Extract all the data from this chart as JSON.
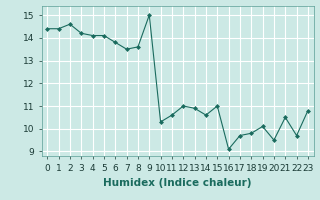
{
  "x": [
    0,
    1,
    2,
    3,
    4,
    5,
    6,
    7,
    8,
    9,
    10,
    11,
    12,
    13,
    14,
    15,
    16,
    17,
    18,
    19,
    20,
    21,
    22,
    23
  ],
  "y": [
    14.4,
    14.4,
    14.6,
    14.2,
    14.1,
    14.1,
    13.8,
    13.5,
    13.6,
    15.0,
    10.3,
    10.6,
    11.0,
    10.9,
    10.6,
    11.0,
    9.1,
    9.7,
    9.8,
    10.1,
    9.5,
    10.5,
    9.7,
    10.8
  ],
  "line_color": "#1a6b5e",
  "marker": "D",
  "marker_size": 2,
  "bg_color": "#cce9e5",
  "grid_color": "#ffffff",
  "xlabel": "Humidex (Indice chaleur)",
  "xlabel_fontsize": 7.5,
  "tick_fontsize": 6.5,
  "xlim": [
    -0.5,
    23.5
  ],
  "ylim": [
    8.8,
    15.4
  ],
  "yticks": [
    9,
    10,
    11,
    12,
    13,
    14,
    15
  ],
  "xticks": [
    0,
    1,
    2,
    3,
    4,
    5,
    6,
    7,
    8,
    9,
    10,
    11,
    12,
    13,
    14,
    15,
    16,
    17,
    18,
    19,
    20,
    21,
    22,
    23
  ]
}
